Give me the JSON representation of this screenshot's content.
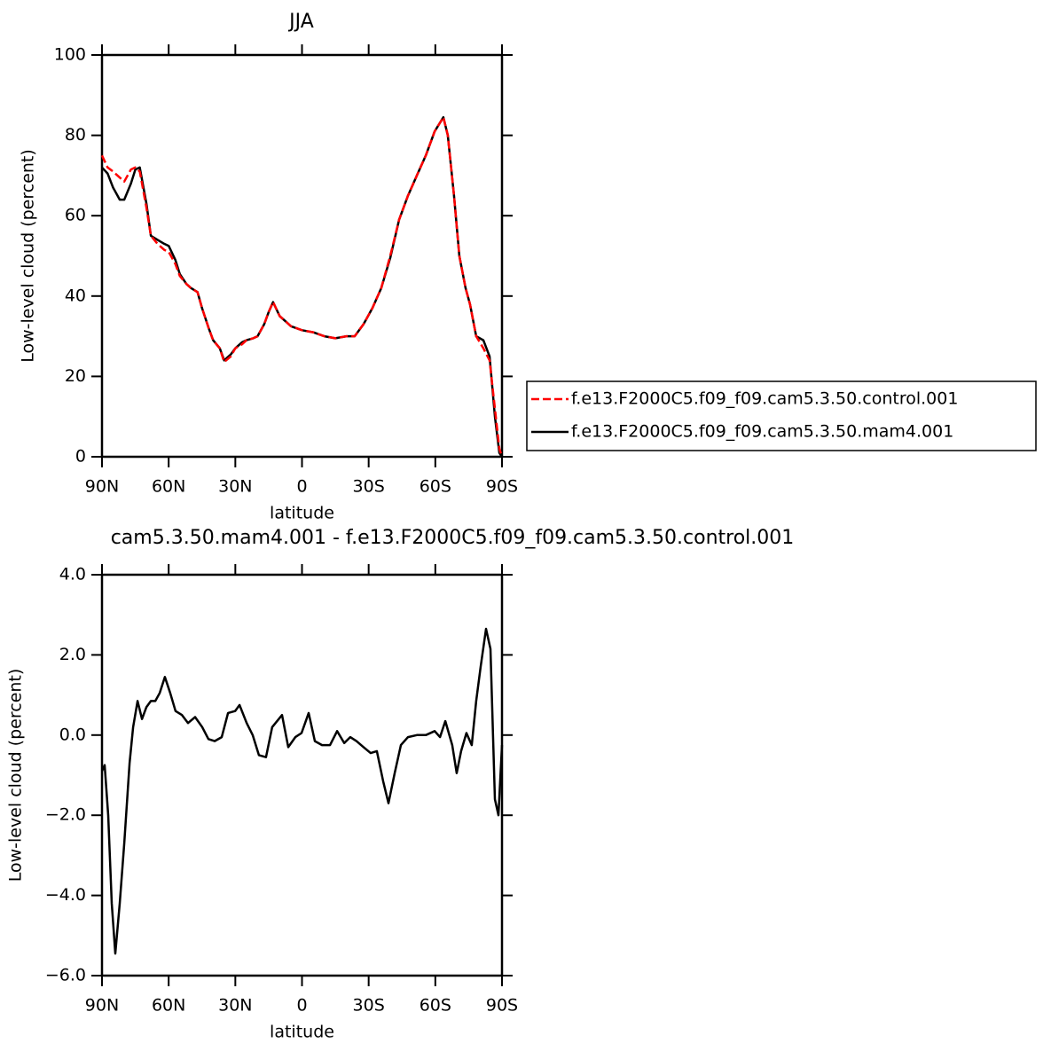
{
  "chart_data": [
    {
      "type": "line",
      "title": "JJA",
      "xlabel": "latitude",
      "ylabel": "Low-level cloud (percent)",
      "x": [
        90,
        87.5,
        85,
        82,
        80,
        77,
        75,
        73,
        70,
        68,
        65,
        62,
        60,
        57,
        55,
        52,
        50,
        47,
        45,
        42,
        40,
        37,
        35,
        32,
        30,
        27,
        25,
        22,
        20,
        17,
        15,
        13,
        10,
        7,
        5,
        0,
        -5,
        -10,
        -15,
        -20,
        -23.7,
        -27.7,
        -31.7,
        -35.7,
        -39.7,
        -43.7,
        -47.7,
        -51.7,
        -55.7,
        -59.7,
        -63.6,
        -65.6,
        -68.4,
        -70.8,
        -73.6,
        -75.6,
        -78.4,
        -81.6,
        -84.4,
        -86.8,
        -88.8,
        -90
      ],
      "series": [
        {
          "name": "f.e13.F2000C5.f09_f09.cam5.3.50.control.001",
          "color": "#ff0000",
          "line_style": "dashed",
          "values": [
            75,
            72,
            71,
            69.5,
            68.5,
            71.5,
            72,
            71,
            62,
            55,
            53,
            51.5,
            51,
            48,
            45,
            43,
            42,
            41,
            37,
            32,
            29,
            27,
            23.6,
            25,
            27,
            28,
            29,
            29.5,
            30,
            33,
            36,
            38.5,
            35,
            33.5,
            32.5,
            31.5,
            31,
            30,
            29.5,
            30,
            30,
            33,
            37,
            42,
            50,
            59,
            65,
            70,
            75,
            81,
            84.5,
            80,
            65,
            50,
            42,
            38,
            30,
            27,
            24,
            12,
            2,
            0
          ]
        },
        {
          "name": "f.e13.F2000C5.f09_f09.cam5.3.50.mam4.001",
          "color": "#000000",
          "line_style": "solid",
          "values": [
            72,
            70.5,
            67,
            64,
            64,
            68,
            71.5,
            72,
            63,
            55,
            54,
            53,
            52.5,
            49,
            45.5,
            43,
            42,
            41,
            37,
            32,
            29,
            27,
            24,
            25.5,
            27,
            28.5,
            29,
            29.5,
            30,
            33,
            36,
            38.5,
            35,
            33.5,
            32.5,
            31.5,
            31,
            30,
            29.5,
            30,
            30,
            33,
            37,
            42,
            49.5,
            59,
            65,
            70,
            75,
            81,
            84.5,
            80,
            65,
            50,
            42,
            38,
            30,
            29,
            25,
            10,
            1,
            0
          ]
        }
      ],
      "xlim": [
        90,
        -90
      ],
      "xticks": [
        {
          "value": 90,
          "label": "90N"
        },
        {
          "value": 60,
          "label": "60N"
        },
        {
          "value": 30,
          "label": "30N"
        },
        0,
        {
          "value": -30,
          "label": "30S"
        },
        {
          "value": -60,
          "label": "60S"
        },
        {
          "value": -90,
          "label": "90S"
        }
      ],
      "ylim": [
        0,
        100
      ],
      "yticks": [
        0,
        20,
        40,
        60,
        80,
        100
      ],
      "legend": "right"
    },
    {
      "type": "line",
      "title": "cam5.3.50.mam4.001 - f.e13.F2000C5.f09_f09.cam5.3.50.control.001",
      "xlabel": "latitude",
      "ylabel": "Low-level cloud (percent)",
      "x": [
        90,
        88.8,
        87.2,
        85.6,
        84,
        82,
        80,
        77.6,
        76,
        74,
        72,
        70,
        68,
        66,
        64,
        61.7,
        59.3,
        56.9,
        54,
        51.3,
        48.1,
        44.9,
        42.1,
        39.3,
        36.1,
        33.3,
        30.1,
        28.1,
        24.9,
        22.2,
        19.4,
        16.2,
        13.4,
        9,
        6.2,
        3,
        0.2,
        -3,
        -5.8,
        -9,
        -12.6,
        -15.8,
        -19,
        -21.7,
        -24.5,
        -27.7,
        -30.9,
        -33.7,
        -36.5,
        -38.9,
        -41.7,
        -44.5,
        -47.7,
        -51.7,
        -55.7,
        -59.7,
        -62.1,
        -64.5,
        -67.6,
        -69.6,
        -71.6,
        -74,
        -76.4,
        -78.4,
        -80.4,
        -82.8,
        -84.8,
        -86.8,
        -88.4,
        -90
      ],
      "values": [
        -0.9,
        -0.75,
        -2,
        -4.2,
        -5.45,
        -4.2,
        -2.7,
        -0.7,
        0.2,
        0.85,
        0.4,
        0.7,
        0.85,
        0.85,
        1.05,
        1.45,
        1.05,
        0.6,
        0.5,
        0.3,
        0.45,
        0.2,
        -0.1,
        -0.15,
        -0.05,
        0.55,
        0.6,
        0.75,
        0.3,
        0,
        -0.5,
        -0.55,
        0.2,
        0.5,
        -0.3,
        -0.05,
        0.05,
        0.55,
        -0.15,
        -0.25,
        -0.25,
        0.1,
        -0.2,
        -0.05,
        -0.15,
        -0.3,
        -0.45,
        -0.4,
        -1.15,
        -1.7,
        -0.95,
        -0.25,
        -0.05,
        0,
        0,
        0.1,
        -0.05,
        0.35,
        -0.25,
        -0.95,
        -0.4,
        0.05,
        -0.25,
        0.85,
        1.7,
        2.65,
        2.15,
        -1.6,
        -2,
        -0.25
      ],
      "color": "#000000",
      "xlim": [
        90,
        -90
      ],
      "xticks": [
        {
          "value": 90,
          "label": "90N"
        },
        {
          "value": 60,
          "label": "60N"
        },
        {
          "value": 30,
          "label": "30N"
        },
        0,
        {
          "value": -30,
          "label": "30S"
        },
        {
          "value": -60,
          "label": "60S"
        },
        {
          "value": -90,
          "label": "90S"
        }
      ],
      "ylim": [
        -6,
        4
      ],
      "yticks": [
        {
          "value": -6,
          "label": "−6.0"
        },
        {
          "value": -4,
          "label": "−4.0"
        },
        {
          "value": -2,
          "label": "−2.0"
        },
        {
          "value": 0,
          "label": "0.0"
        },
        {
          "value": 2,
          "label": "2.0"
        },
        {
          "value": 4,
          "label": "4.0"
        }
      ]
    }
  ]
}
